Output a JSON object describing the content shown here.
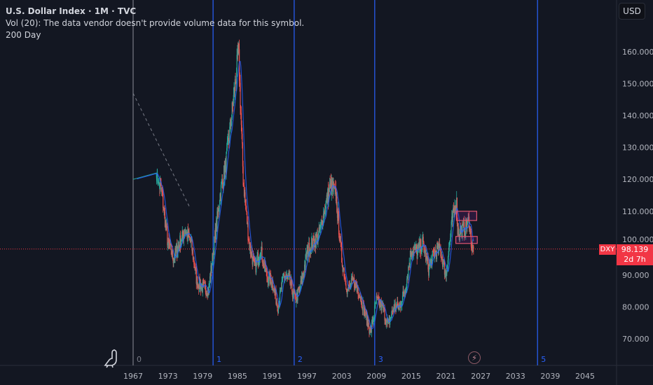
{
  "legend": {
    "title": "U.S. Dollar Index · 1M · TVC",
    "volume": "Vol (20): The data vendor doesn't provide volume data for this symbol.",
    "indicator": "200 Day"
  },
  "currency_button": "USD",
  "price_tag": {
    "symbol": "DXY",
    "price": "98.139",
    "countdown": "2d 7h"
  },
  "colors": {
    "background": "#131722",
    "up": "#26a69a",
    "down": "#ef5350",
    "ma": "#2962ff",
    "cycle_line": "#2962ff",
    "price_line": "#f23645"
  },
  "icons": {
    "logo": "tradingview-dino-icon",
    "flash": "lightning-icon"
  },
  "chart_data": {
    "type": "candlestick",
    "timeframe": "1M",
    "ylim": [
      66,
      168
    ],
    "xlim": [
      1964.5,
      2047
    ],
    "y_ticks": [
      "160.000",
      "150.000",
      "140.000",
      "130.000",
      "120.000",
      "110.000",
      "100.000",
      "90.000",
      "80.000",
      "70.000"
    ],
    "y_tick_values": [
      160,
      150,
      140,
      130,
      120,
      110,
      100,
      90,
      80,
      70
    ],
    "x_ticks": [
      "1967",
      "1973",
      "1979",
      "1985",
      "1991",
      "1997",
      "2003",
      "2009",
      "2015",
      "2021",
      "2027",
      "2033",
      "2039",
      "2045"
    ],
    "x_tick_values": [
      1967,
      1973,
      1979,
      1985,
      1991,
      1997,
      2003,
      2009,
      2015,
      2021,
      2027,
      2033,
      2039,
      2045
    ],
    "price_keypoints": [
      [
        1967,
        120
      ],
      [
        1971,
        122
      ],
      [
        1972,
        115
      ],
      [
        1973,
        100
      ],
      [
        1974,
        95
      ],
      [
        1975,
        100
      ],
      [
        1976,
        104
      ],
      [
        1977,
        100
      ],
      [
        1978,
        88
      ],
      [
        1979,
        86
      ],
      [
        1980,
        85
      ],
      [
        1981,
        100
      ],
      [
        1982,
        115
      ],
      [
        1983,
        125
      ],
      [
        1984,
        140
      ],
      [
        1985.2,
        160
      ],
      [
        1986,
        120
      ],
      [
        1987,
        100
      ],
      [
        1988,
        92
      ],
      [
        1989,
        98
      ],
      [
        1990,
        90
      ],
      [
        1991,
        88
      ],
      [
        1992,
        80
      ],
      [
        1993,
        90
      ],
      [
        1994,
        88
      ],
      [
        1995,
        82
      ],
      [
        1996,
        87
      ],
      [
        1997,
        97
      ],
      [
        1998,
        100
      ],
      [
        1999,
        102
      ],
      [
        2000,
        110
      ],
      [
        2001,
        118
      ],
      [
        2002,
        115
      ],
      [
        2003,
        95
      ],
      [
        2004,
        85
      ],
      [
        2005,
        88
      ],
      [
        2006,
        85
      ],
      [
        2007,
        78
      ],
      [
        2008,
        72
      ],
      [
        2009,
        82
      ],
      [
        2010,
        80
      ],
      [
        2011,
        74
      ],
      [
        2012,
        80
      ],
      [
        2013,
        80
      ],
      [
        2014,
        86
      ],
      [
        2015,
        98
      ],
      [
        2016,
        97
      ],
      [
        2017,
        100
      ],
      [
        2018,
        92
      ],
      [
        2019,
        97
      ],
      [
        2020,
        98
      ],
      [
        2021,
        90
      ],
      [
        2022,
        106
      ],
      [
        2022.8,
        114
      ],
      [
        2023,
        104
      ],
      [
        2024,
        104
      ],
      [
        2025,
        107
      ],
      [
        2025.5,
        98
      ],
      [
        2025.8,
        98.139
      ]
    ],
    "last_price": 98.139,
    "vertical_lines": [
      {
        "label": "0",
        "time": 1967,
        "color": "#787b86"
      },
      {
        "label": "1",
        "time": 1980.8,
        "color": "#2962ff"
      },
      {
        "label": "2",
        "time": 1994.8,
        "color": "#2962ff"
      },
      {
        "label": "3",
        "time": 2008.7,
        "color": "#2962ff"
      },
      {
        "label": "5",
        "time": 2036.8,
        "color": "#2962ff"
      }
    ],
    "trend_line": {
      "from": [
        1967,
        147
      ],
      "to": [
        1976.7,
        111.5
      ],
      "style": "dashed"
    },
    "rectangles": [
      {
        "from": [
          2022.8,
          110
        ],
        "to": [
          2026.3,
          107.1
        ]
      },
      {
        "from": [
          2022.7,
          102.1
        ],
        "to": [
          2026.4,
          99.9
        ]
      }
    ]
  }
}
